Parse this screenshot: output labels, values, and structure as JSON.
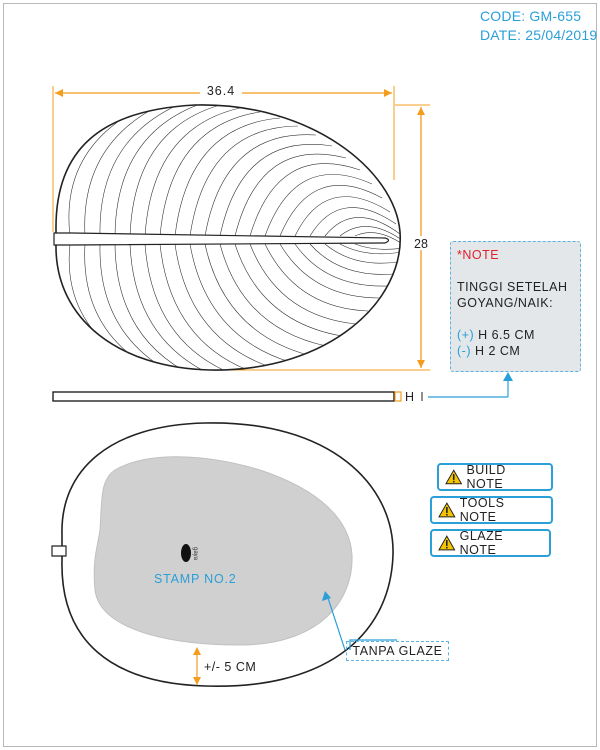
{
  "header": {
    "code": "CODE: GM-655",
    "date": "DATE: 25/04/2019"
  },
  "dimensions": {
    "width_label": "36.4",
    "height_label": "28",
    "thickness_label": "H",
    "rim_label": "+/- 5 CM"
  },
  "note": {
    "title": "*NOTE",
    "line1": "TINGGI SETELAH",
    "line2": "GOYANG/NAIK:",
    "plus_sign": "(+)",
    "plus_value": "H 6.5 CM",
    "minus_sign": "(-)",
    "minus_value": "H 2 CM"
  },
  "buttons": {
    "build": "BUILD NOTE",
    "tools": "TOOLS NOTE",
    "glaze": "GLAZE NOTE"
  },
  "stamp": {
    "label": "STAMP NO.2",
    "logo_text": "gaya"
  },
  "tanpa_glaze": "TANPA GLAZE",
  "colors": {
    "accent": "#2a9fd8",
    "dimension": "#f39c1e",
    "warning": "#f5c400",
    "note_title": "#e0202a",
    "glaze_area": "#d0d0d0"
  }
}
